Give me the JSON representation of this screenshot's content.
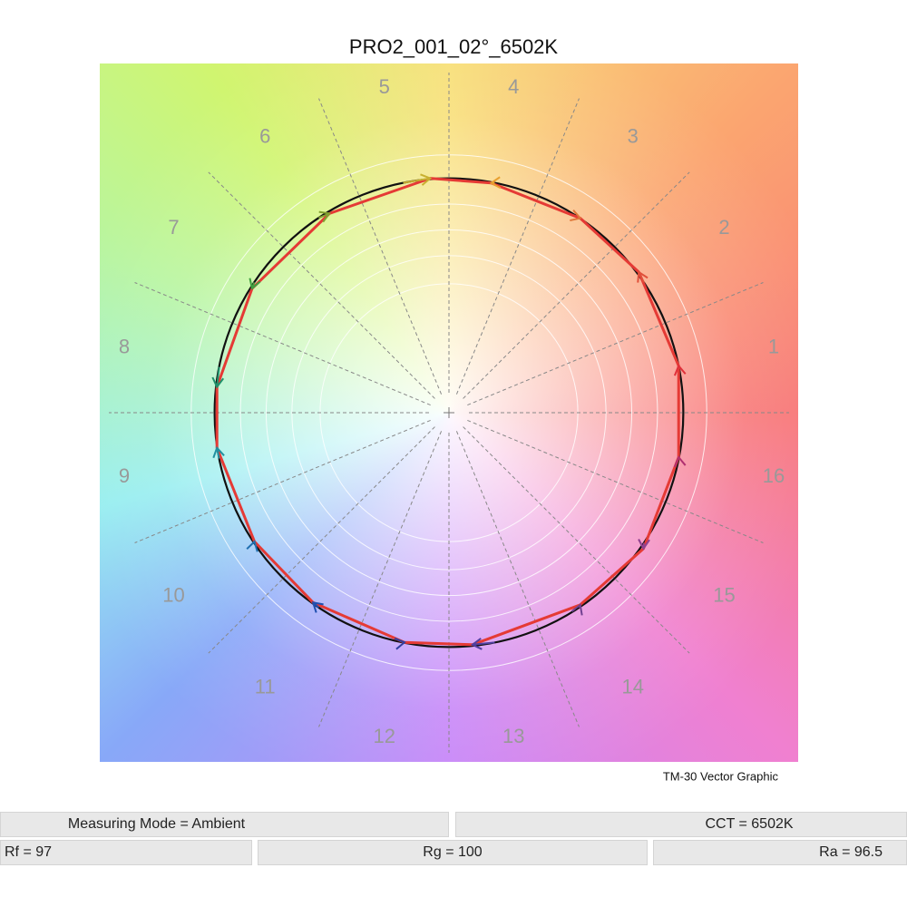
{
  "chart_data": {
    "type": "vector",
    "title": "PRO2_001_02°_6502K",
    "caption": "TM-30 Vector Graphic",
    "categories": [
      "1",
      "2",
      "3",
      "4",
      "5",
      "6",
      "7",
      "8",
      "9",
      "10",
      "11",
      "12",
      "13",
      "14",
      "15",
      "16"
    ],
    "series": [
      {
        "color": "#e53a35",
        "x": [
          0.98,
          0.81,
          0.56,
          0.18,
          -0.08,
          -0.51,
          -0.84,
          -0.99,
          -0.99,
          -0.83,
          -0.58,
          -0.19,
          0.1,
          0.56,
          0.83,
          0.98
        ],
        "y": [
          0.2,
          0.6,
          0.83,
          0.98,
          1.0,
          0.85,
          0.53,
          0.11,
          -0.15,
          -0.55,
          -0.81,
          -0.98,
          -0.99,
          -0.82,
          -0.58,
          -0.19
        ]
      }
    ],
    "arrow_colors": [
      "#e0303a",
      "#e0503a",
      "#e0783a",
      "#e8a030",
      "#c8b030",
      "#80a030",
      "#40a040",
      "#20906a",
      "#2090a0",
      "#2070b0",
      "#2050b0",
      "#3040a0",
      "#5040a0",
      "#704090",
      "#904090",
      "#b03070"
    ],
    "reference_color": "#111111",
    "xlim": [
      -1.49,
      1.49
    ],
    "ylim": [
      -1.49,
      1.49
    ]
  },
  "info": {
    "row1": [
      "Measuring Mode = Ambient",
      "CCT = 6502K"
    ],
    "row2": [
      "Rf = 97",
      "Rg = 100",
      "Ra = 96.5"
    ]
  }
}
